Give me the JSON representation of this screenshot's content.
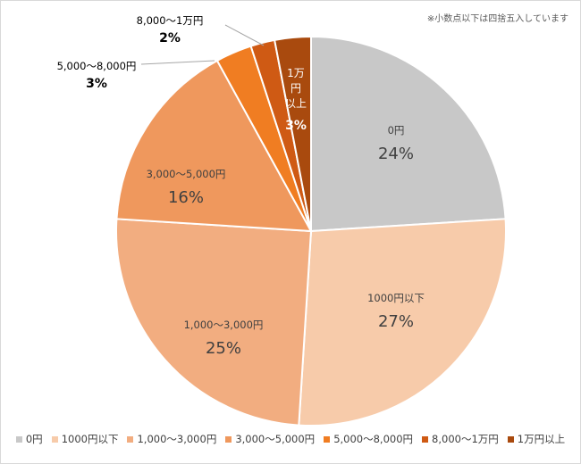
{
  "note": "※小数点以下は四捨五入しています",
  "chart_data": {
    "type": "pie",
    "slices": [
      {
        "label": "0円",
        "value": 24,
        "value_label": "24%",
        "color": "#c8c8c8",
        "text_color": "#404040"
      },
      {
        "label": "1000円以下",
        "value": 27,
        "value_label": "27%",
        "color": "#f7cbaa",
        "text_color": "#404040"
      },
      {
        "label": "1,000〜3,000円",
        "value": 25,
        "value_label": "25%",
        "color": "#f2ad80",
        "text_color": "#404040"
      },
      {
        "label": "3,000〜5,000円",
        "value": 16,
        "value_label": "16%",
        "color": "#ef985d",
        "text_color": "#404040"
      },
      {
        "label": "5,000〜8,000円",
        "value": 3,
        "value_label": "3%",
        "color": "#f07d22",
        "text_color": "#000000"
      },
      {
        "label": "8,000〜1万円",
        "value": 2,
        "value_label": "2%",
        "color": "#cf5a14",
        "text_color": "#000000"
      },
      {
        "label": "1万円以上",
        "value": 3,
        "value_label": "3%",
        "color": "#a94a0e",
        "text_color": "#ffffff"
      }
    ],
    "legend": "bottom"
  }
}
